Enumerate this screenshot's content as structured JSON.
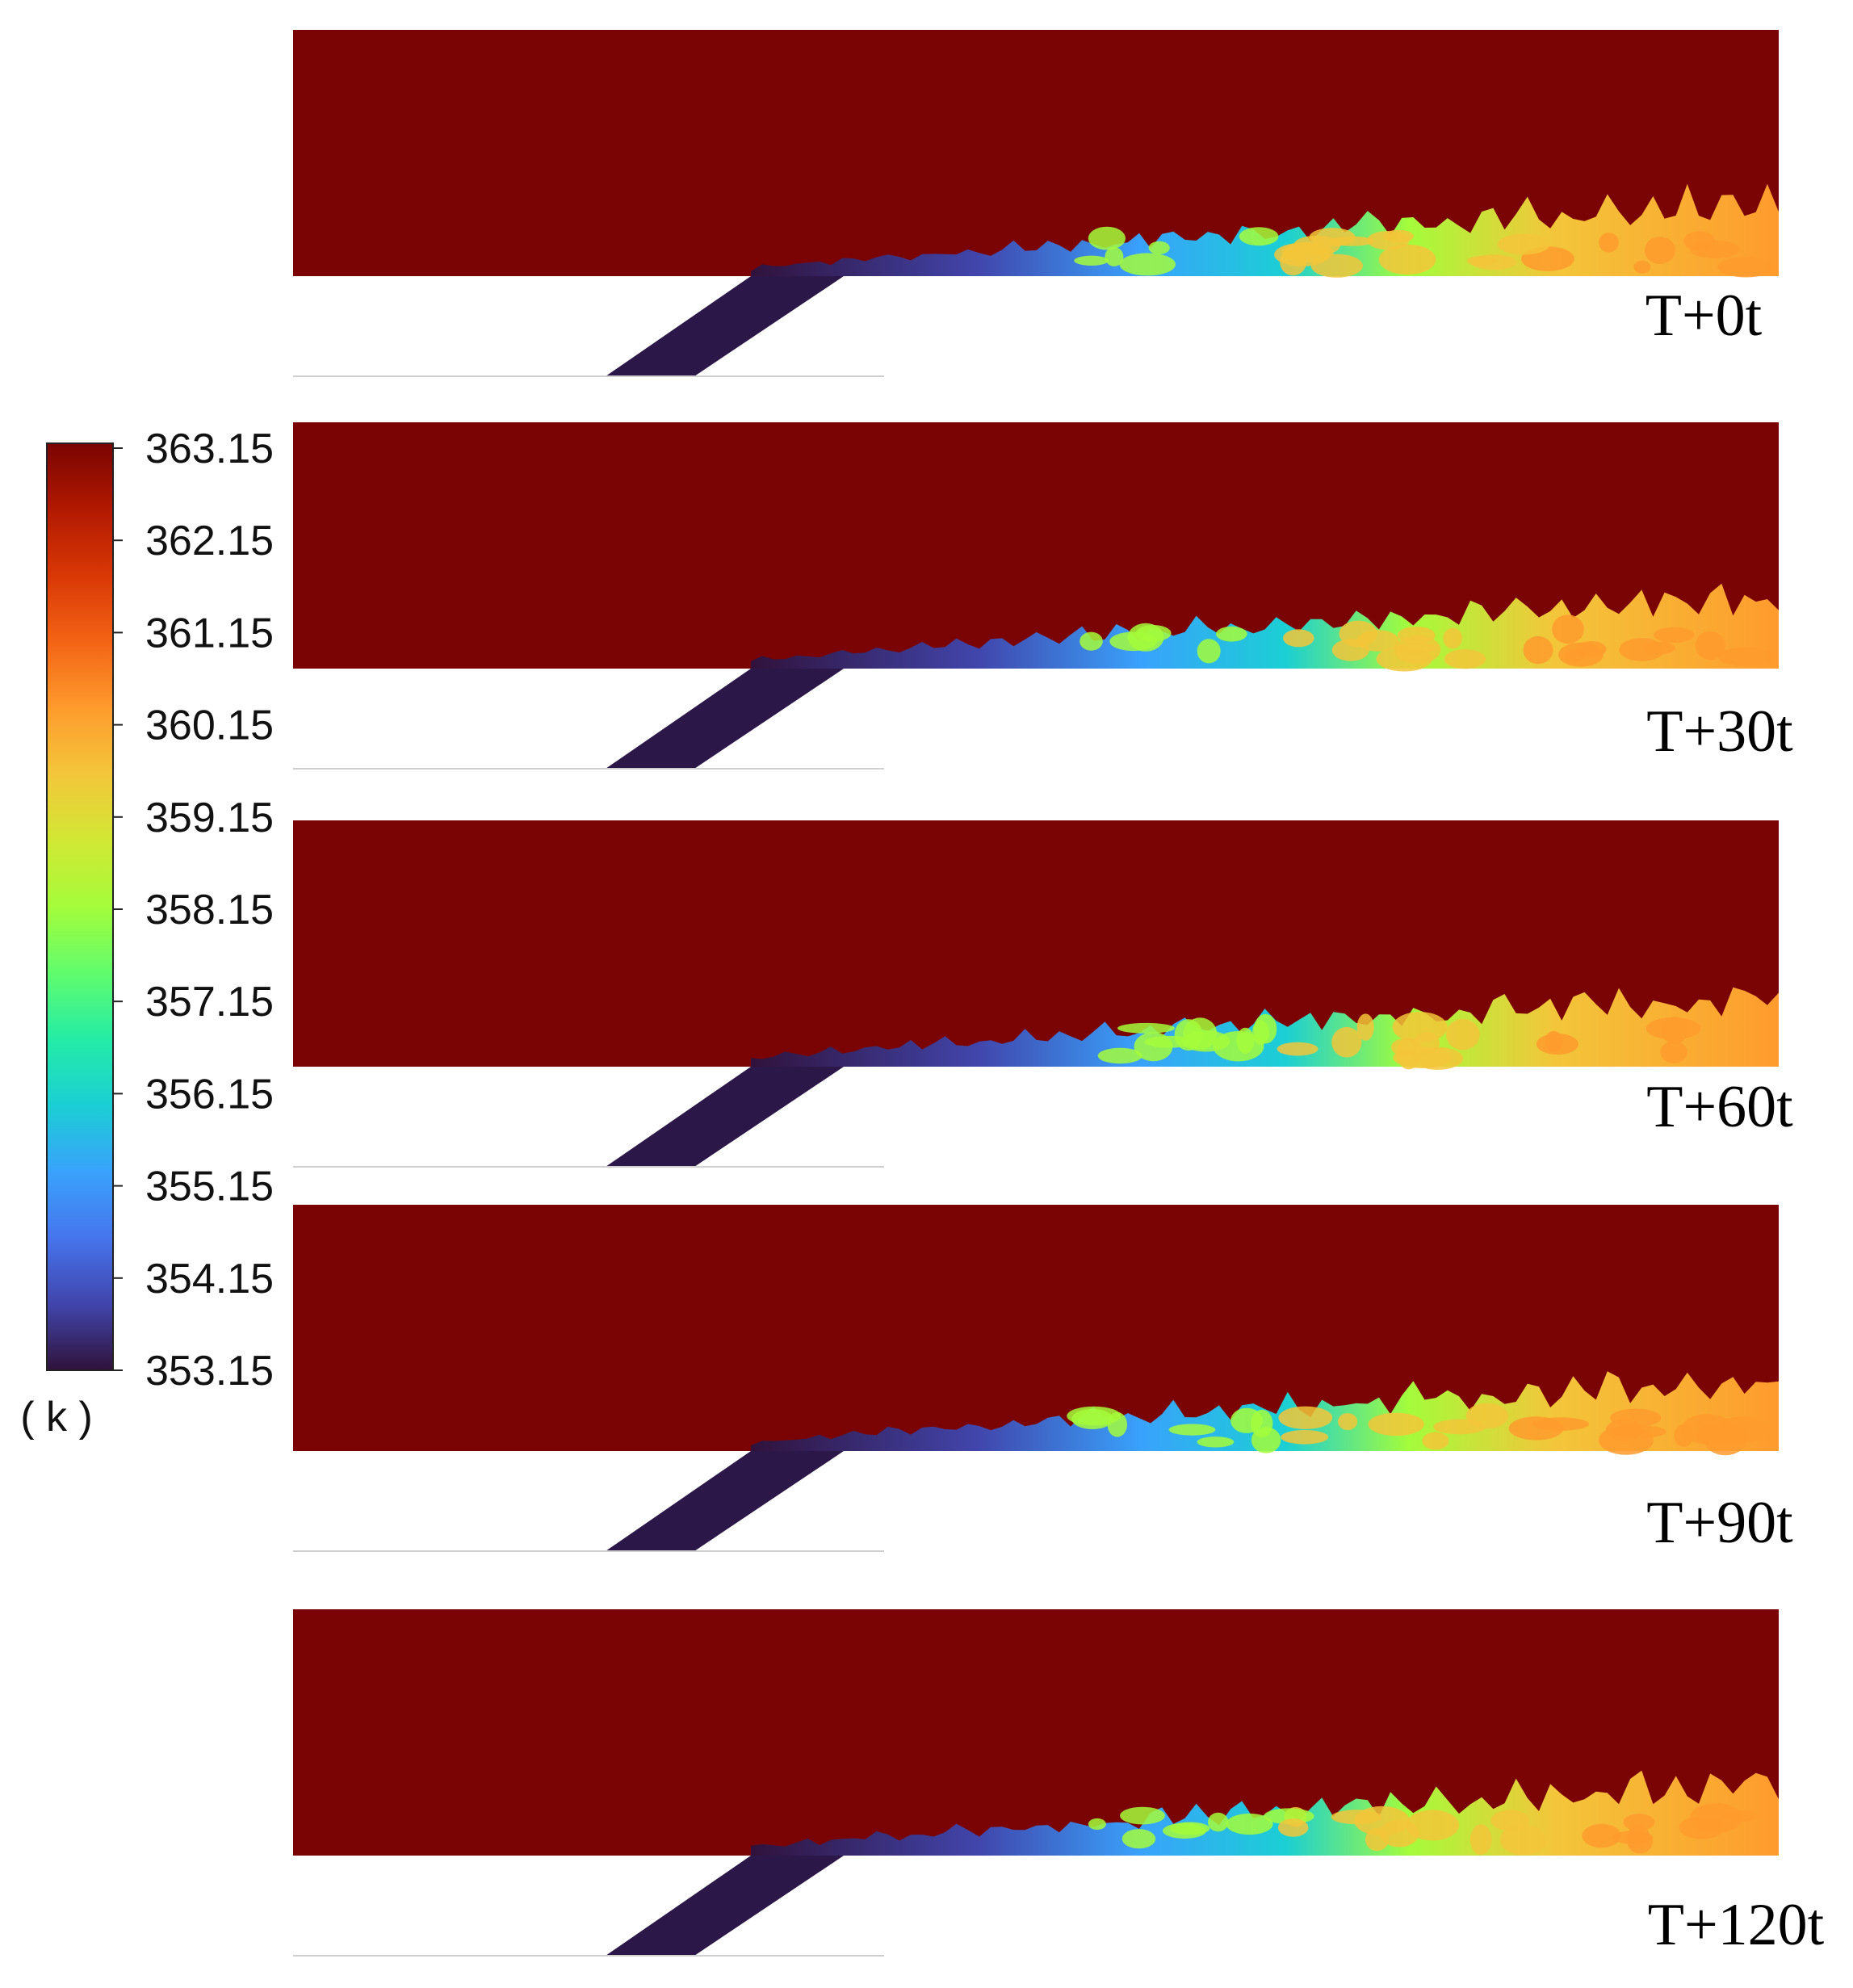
{
  "colorbar": {
    "ticks": [
      "363.15",
      "362.15",
      "361.15",
      "360.15",
      "359.15",
      "358.15",
      "357.15",
      "356.15",
      "355.15",
      "354.15",
      "353.15"
    ],
    "unit": "( k )",
    "min": 353.15,
    "max": 363.15,
    "colors": [
      "#30123b",
      "#4145ab",
      "#4675ed",
      "#39a2fc",
      "#1bcfd4",
      "#24eca6",
      "#61fc6c",
      "#a4fc3b",
      "#d1e834",
      "#f3c63a",
      "#fe9b2d",
      "#f36315",
      "#d93806",
      "#b11901",
      "#7a0403"
    ]
  },
  "field": {
    "hot_color": "#7a0403",
    "injector_color": "#2c1848",
    "wall_color": "#cfcfcf"
  },
  "panels": [
    {
      "label": "T+0t"
    },
    {
      "label": "T+30t"
    },
    {
      "label": "T+60t"
    },
    {
      "label": "T+90t"
    },
    {
      "label": "T+120t"
    }
  ]
}
